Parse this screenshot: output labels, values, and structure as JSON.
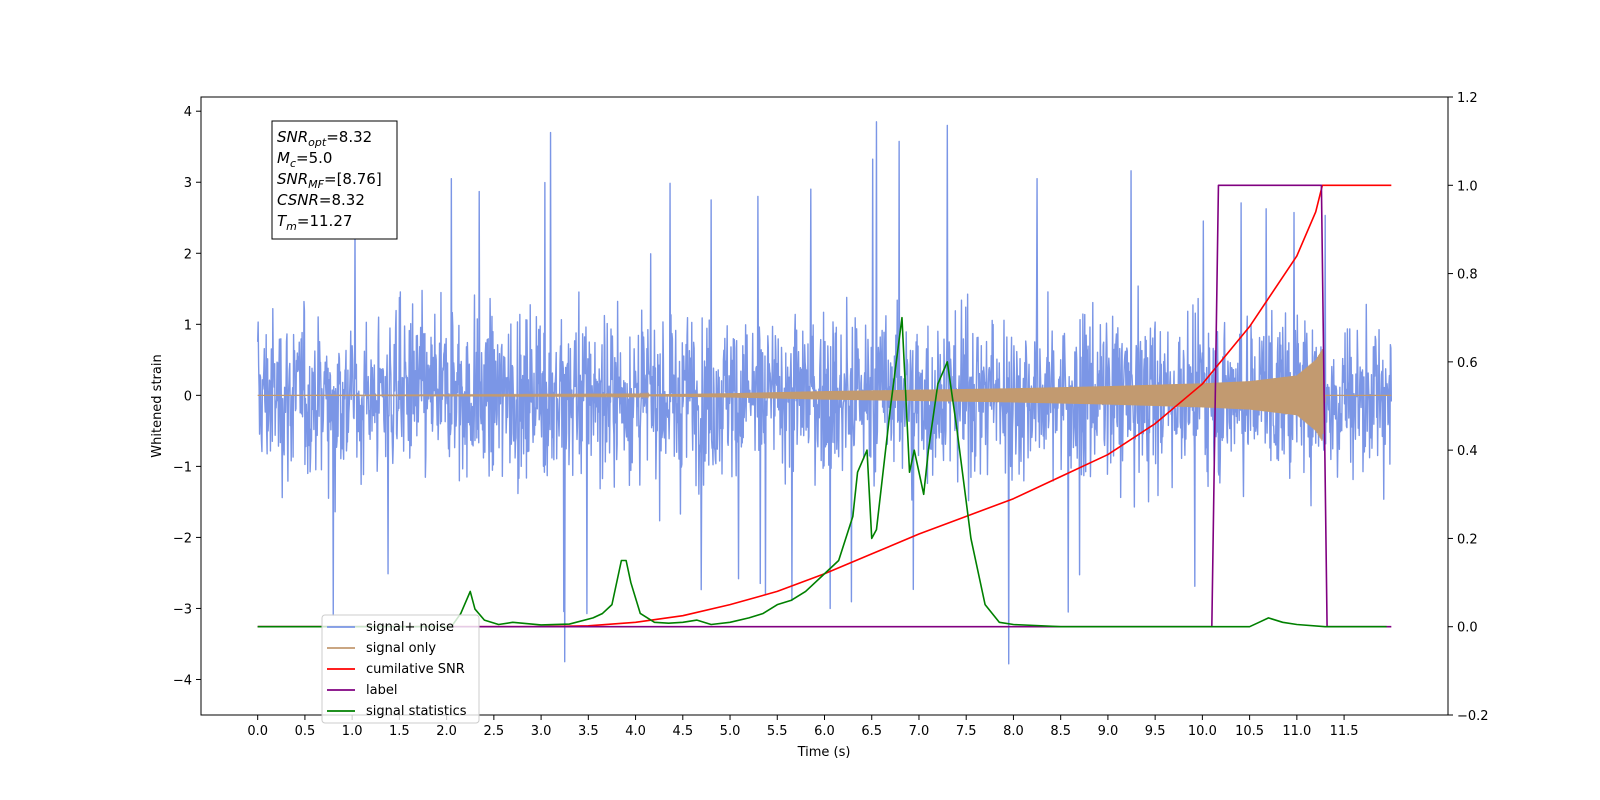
{
  "chart_data": {
    "type": "line",
    "title": "",
    "xlabel": "Time (s)",
    "ylabel": "Whitened strain",
    "xlim": [
      -0.6,
      12.6
    ],
    "ylim": [
      -4.5,
      4.2
    ],
    "y2lim": [
      -0.2,
      1.2
    ],
    "xticks": [
      "0.0",
      "0.5",
      "1.0",
      "1.5",
      "2.0",
      "2.5",
      "3.0",
      "3.5",
      "4.0",
      "4.5",
      "5.0",
      "5.5",
      "6.0",
      "6.5",
      "7.0",
      "7.5",
      "8.0",
      "8.5",
      "9.0",
      "9.5",
      "10.0",
      "10.5",
      "11.0",
      "11.5"
    ],
    "yticks": [
      "4",
      "3",
      "2",
      "1",
      "0",
      "−1",
      "−2",
      "−3",
      "−4"
    ],
    "y2ticks": [
      "1.2",
      "1.0",
      "0.8",
      "0.6",
      "0.4",
      "0.2",
      "0.0",
      "−0.2"
    ],
    "grid": false,
    "legend_placement": "lower-left",
    "annotation": {
      "lines": [
        {
          "sym": "SNR",
          "sub": "opt",
          "val": "=8.32"
        },
        {
          "sym": "M",
          "sub": "c",
          "val": "=5.0"
        },
        {
          "sym": "SNR",
          "sub": "MF",
          "val": "=[8.76]"
        },
        {
          "sym": "CSNR",
          "sub": "",
          "val": "=8.32"
        },
        {
          "sym": "T",
          "sub": "m",
          "val": "=11.27"
        }
      ]
    },
    "series": [
      {
        "name": "signal+ noise",
        "axis": "left",
        "color": "#7b96e6",
        "envelope_x": [
          0.0,
          1.0,
          2.0,
          3.0,
          4.0,
          5.0,
          6.0,
          7.0,
          8.0,
          9.0,
          10.0,
          11.0,
          12.0
        ],
        "envelope_hi": [
          2.2,
          2.6,
          3.1,
          3.7,
          3.0,
          3.1,
          3.4,
          3.85,
          3.5,
          3.3,
          3.1,
          3.3,
          3.0
        ],
        "envelope_lo": [
          -2.3,
          -3.3,
          -3.2,
          -3.75,
          -3.0,
          -2.9,
          -3.0,
          -3.1,
          -3.78,
          -3.0,
          -2.8,
          -3.0,
          -2.8
        ],
        "spikes": [
          [
            3.1,
            3.7
          ],
          [
            6.55,
            3.85
          ],
          [
            7.3,
            3.8
          ],
          [
            3.25,
            -3.75
          ],
          [
            7.95,
            -3.78
          ],
          [
            0.8,
            -3.1
          ],
          [
            2.05,
            3.05
          ],
          [
            4.8,
            2.75
          ]
        ]
      },
      {
        "name": "signal only",
        "axis": "left",
        "color": "#c29a70",
        "envelope_x": [
          0.0,
          4.0,
          5.0,
          6.0,
          7.0,
          8.0,
          9.0,
          10.0,
          10.5,
          11.0,
          11.2,
          11.27,
          11.3,
          12.0
        ],
        "amplitude": [
          0.0,
          0.01,
          0.03,
          0.06,
          0.08,
          0.1,
          0.13,
          0.17,
          0.2,
          0.28,
          0.5,
          0.65,
          0.0,
          0.0
        ]
      },
      {
        "name": "cumilative SNR",
        "axis": "right",
        "color": "#ff0000",
        "x": [
          0.0,
          3.0,
          3.5,
          4.0,
          4.5,
          5.0,
          5.5,
          6.0,
          6.5,
          7.0,
          7.5,
          8.0,
          8.5,
          9.0,
          9.5,
          10.0,
          10.5,
          11.0,
          11.2,
          11.27,
          11.3,
          12.0
        ],
        "values": [
          0.0,
          0.0,
          0.002,
          0.01,
          0.025,
          0.05,
          0.08,
          0.12,
          0.165,
          0.21,
          0.25,
          0.29,
          0.34,
          0.39,
          0.46,
          0.55,
          0.68,
          0.84,
          0.94,
          1.0,
          1.0,
          1.0
        ]
      },
      {
        "name": "label",
        "axis": "right",
        "color": "#800080",
        "x": [
          0.0,
          10.1,
          10.17,
          11.26,
          11.32,
          12.0
        ],
        "values": [
          0.0,
          0.0,
          1.0,
          1.0,
          0.0,
          0.0
        ]
      },
      {
        "name": "signal statistics",
        "axis": "right",
        "color": "#008000",
        "x": [
          0.0,
          2.05,
          2.15,
          2.25,
          2.3,
          2.4,
          2.55,
          2.7,
          2.8,
          3.0,
          3.3,
          3.55,
          3.65,
          3.75,
          3.85,
          3.9,
          3.95,
          4.05,
          4.2,
          4.35,
          4.5,
          4.65,
          4.8,
          5.0,
          5.2,
          5.35,
          5.5,
          5.65,
          5.8,
          6.0,
          6.15,
          6.3,
          6.35,
          6.45,
          6.5,
          6.55,
          6.7,
          6.82,
          6.9,
          6.95,
          7.0,
          7.05,
          7.1,
          7.2,
          7.3,
          7.4,
          7.55,
          7.7,
          7.85,
          8.0,
          8.5,
          10.5,
          10.6,
          10.7,
          10.85,
          11.0,
          11.3,
          11.95
        ],
        "values": [
          0.0,
          0.0,
          0.03,
          0.08,
          0.04,
          0.015,
          0.005,
          0.01,
          0.008,
          0.004,
          0.006,
          0.02,
          0.03,
          0.05,
          0.15,
          0.15,
          0.1,
          0.03,
          0.01,
          0.008,
          0.01,
          0.015,
          0.005,
          0.01,
          0.02,
          0.03,
          0.05,
          0.06,
          0.08,
          0.12,
          0.15,
          0.25,
          0.35,
          0.4,
          0.2,
          0.22,
          0.5,
          0.7,
          0.35,
          0.4,
          0.35,
          0.3,
          0.4,
          0.55,
          0.6,
          0.45,
          0.2,
          0.05,
          0.01,
          0.005,
          0.0,
          0.0,
          0.01,
          0.02,
          0.01,
          0.005,
          0.0,
          0.0
        ]
      }
    ]
  }
}
